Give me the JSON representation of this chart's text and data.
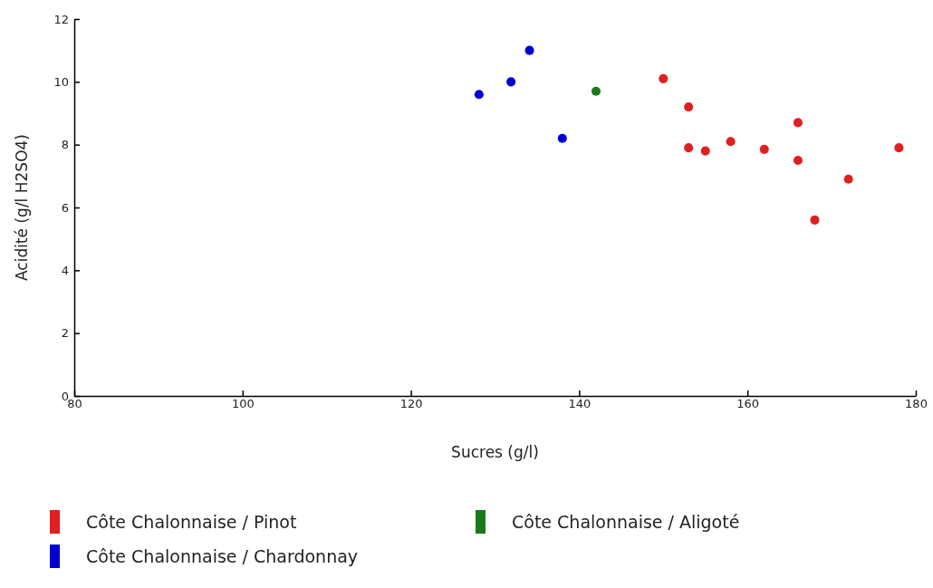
{
  "chart_data": {
    "type": "scatter",
    "xlabel": "Sucres (g/l)",
    "ylabel": "Acidité (g/l H2SO4)",
    "xlim": [
      80,
      180
    ],
    "ylim": [
      0,
      12
    ],
    "xticks": [
      80,
      100,
      120,
      140,
      160,
      180
    ],
    "yticks": [
      0,
      2,
      4,
      6,
      8,
      10,
      12
    ],
    "grid": false,
    "legend": "bottom",
    "marker": "circle",
    "series": [
      {
        "name": "Côte Chalonnaise / Pinot",
        "color": "#e02020",
        "x": [
          150,
          153,
          153,
          155,
          158,
          162,
          166,
          166,
          168,
          172,
          178
        ],
        "values": [
          10.1,
          9.2,
          7.9,
          7.8,
          8.1,
          7.85,
          8.7,
          7.5,
          5.6,
          6.9,
          7.9
        ]
      },
      {
        "name": "Côte Chalonnaise / Aligoté",
        "color": "#1a7a1a",
        "x": [
          142
        ],
        "values": [
          9.7
        ]
      },
      {
        "name": "Côte Chalonnaise / Chardonnay",
        "color": "#0000d0",
        "x": [
          128.1,
          131.9,
          134.1,
          138
        ],
        "values": [
          9.6,
          10,
          11,
          8.2
        ]
      }
    ]
  }
}
